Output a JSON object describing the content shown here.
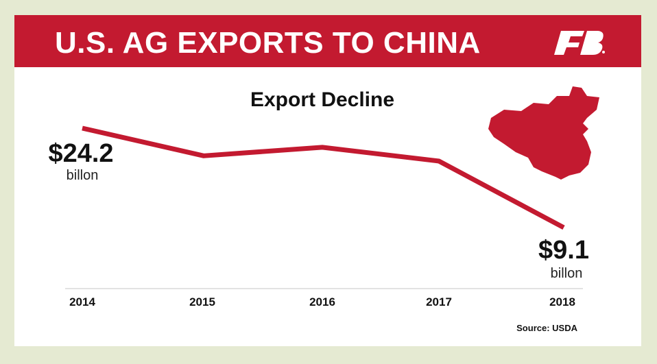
{
  "header": {
    "title": "U.S. AG EXPORTS TO CHINA",
    "logo_text": "FB"
  },
  "colors": {
    "accent": "#c31a30",
    "background": "#e5ead2"
  },
  "chart_data": {
    "type": "line",
    "title": "Export Decline",
    "x": [
      "2014",
      "2015",
      "2016",
      "2017",
      "2018"
    ],
    "series": [
      {
        "name": "U.S. ag exports to China ($ billion)",
        "values": [
          24.2,
          20.0,
          21.3,
          19.2,
          9.1
        ]
      }
    ],
    "annotations": [
      {
        "x": "2014",
        "value_label": "$24.2",
        "unit_label": "billon"
      },
      {
        "x": "2018",
        "value_label": "$9.1",
        "unit_label": "billon"
      }
    ],
    "xlabel": "",
    "ylabel": "",
    "ylim": [
      5,
      28
    ],
    "grid": false,
    "source": "Source: USDA"
  }
}
